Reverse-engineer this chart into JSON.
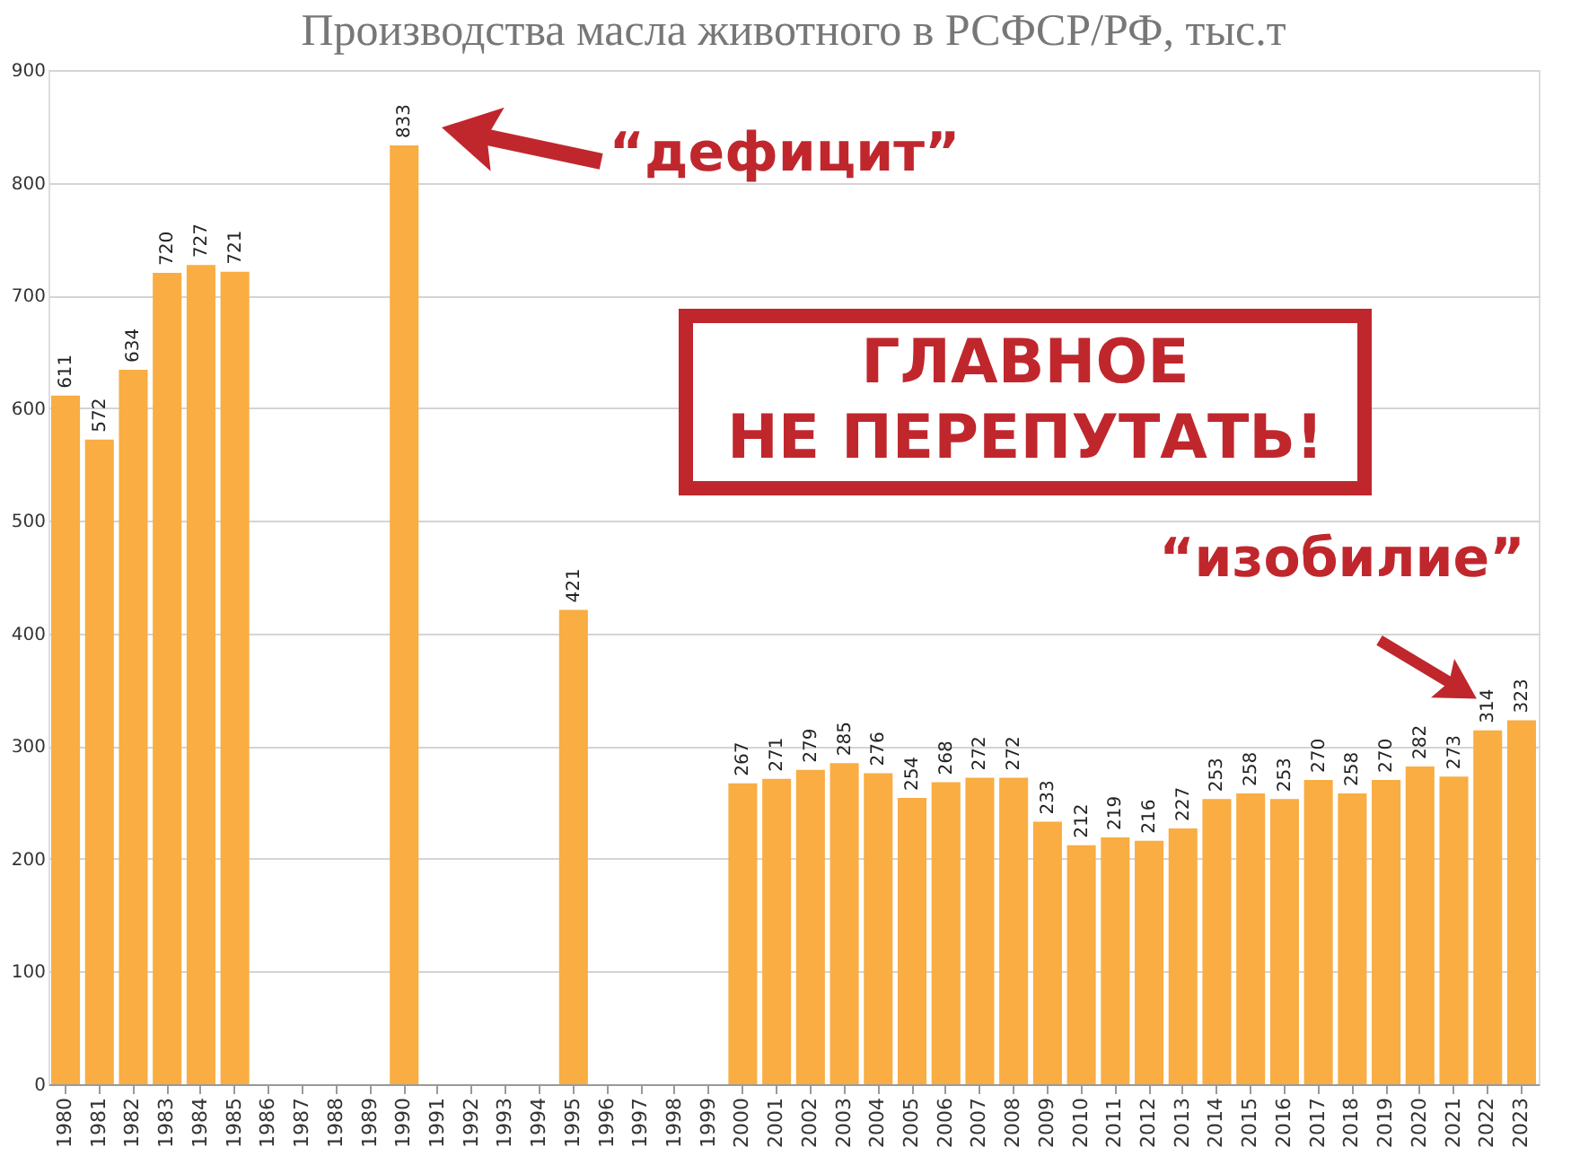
{
  "chart_data": {
    "type": "bar",
    "title": "Производства масла животного в РСФСР/РФ, тыс.т",
    "categories": [
      "1980",
      "1981",
      "1982",
      "1983",
      "1984",
      "1985",
      "1986",
      "1987",
      "1988",
      "1989",
      "1990",
      "1991",
      "1992",
      "1993",
      "1994",
      "1995",
      "1996",
      "1997",
      "1998",
      "1999",
      "2000",
      "2001",
      "2002",
      "2003",
      "2004",
      "2005",
      "2006",
      "2007",
      "2008",
      "2009",
      "2010",
      "2011",
      "2012",
      "2013",
      "2014",
      "2015",
      "2016",
      "2017",
      "2018",
      "2019",
      "2020",
      "2021",
      "2022",
      "2023"
    ],
    "values": [
      611,
      572,
      634,
      720,
      727,
      721,
      null,
      null,
      null,
      null,
      833,
      null,
      null,
      null,
      null,
      421,
      null,
      null,
      null,
      null,
      267,
      271,
      279,
      285,
      276,
      254,
      268,
      272,
      272,
      233,
      212,
      219,
      216,
      227,
      253,
      258,
      253,
      270,
      258,
      270,
      282,
      273,
      314,
      323
    ],
    "color": "#f9ad42",
    "ylim": [
      0,
      900
    ],
    "yticks": [
      0,
      100,
      200,
      300,
      400,
      500,
      600,
      700,
      800,
      900
    ],
    "grid": "y",
    "data_labels": true,
    "annotations": [
      "“дефицит”",
      {
        "text": "“изобилие”",
        "x": "2023",
        "y": 323
      },
      "ГЛАВНОЕ\nНЕ ПЕРЕПУТАТЬ!"
    ]
  }
}
